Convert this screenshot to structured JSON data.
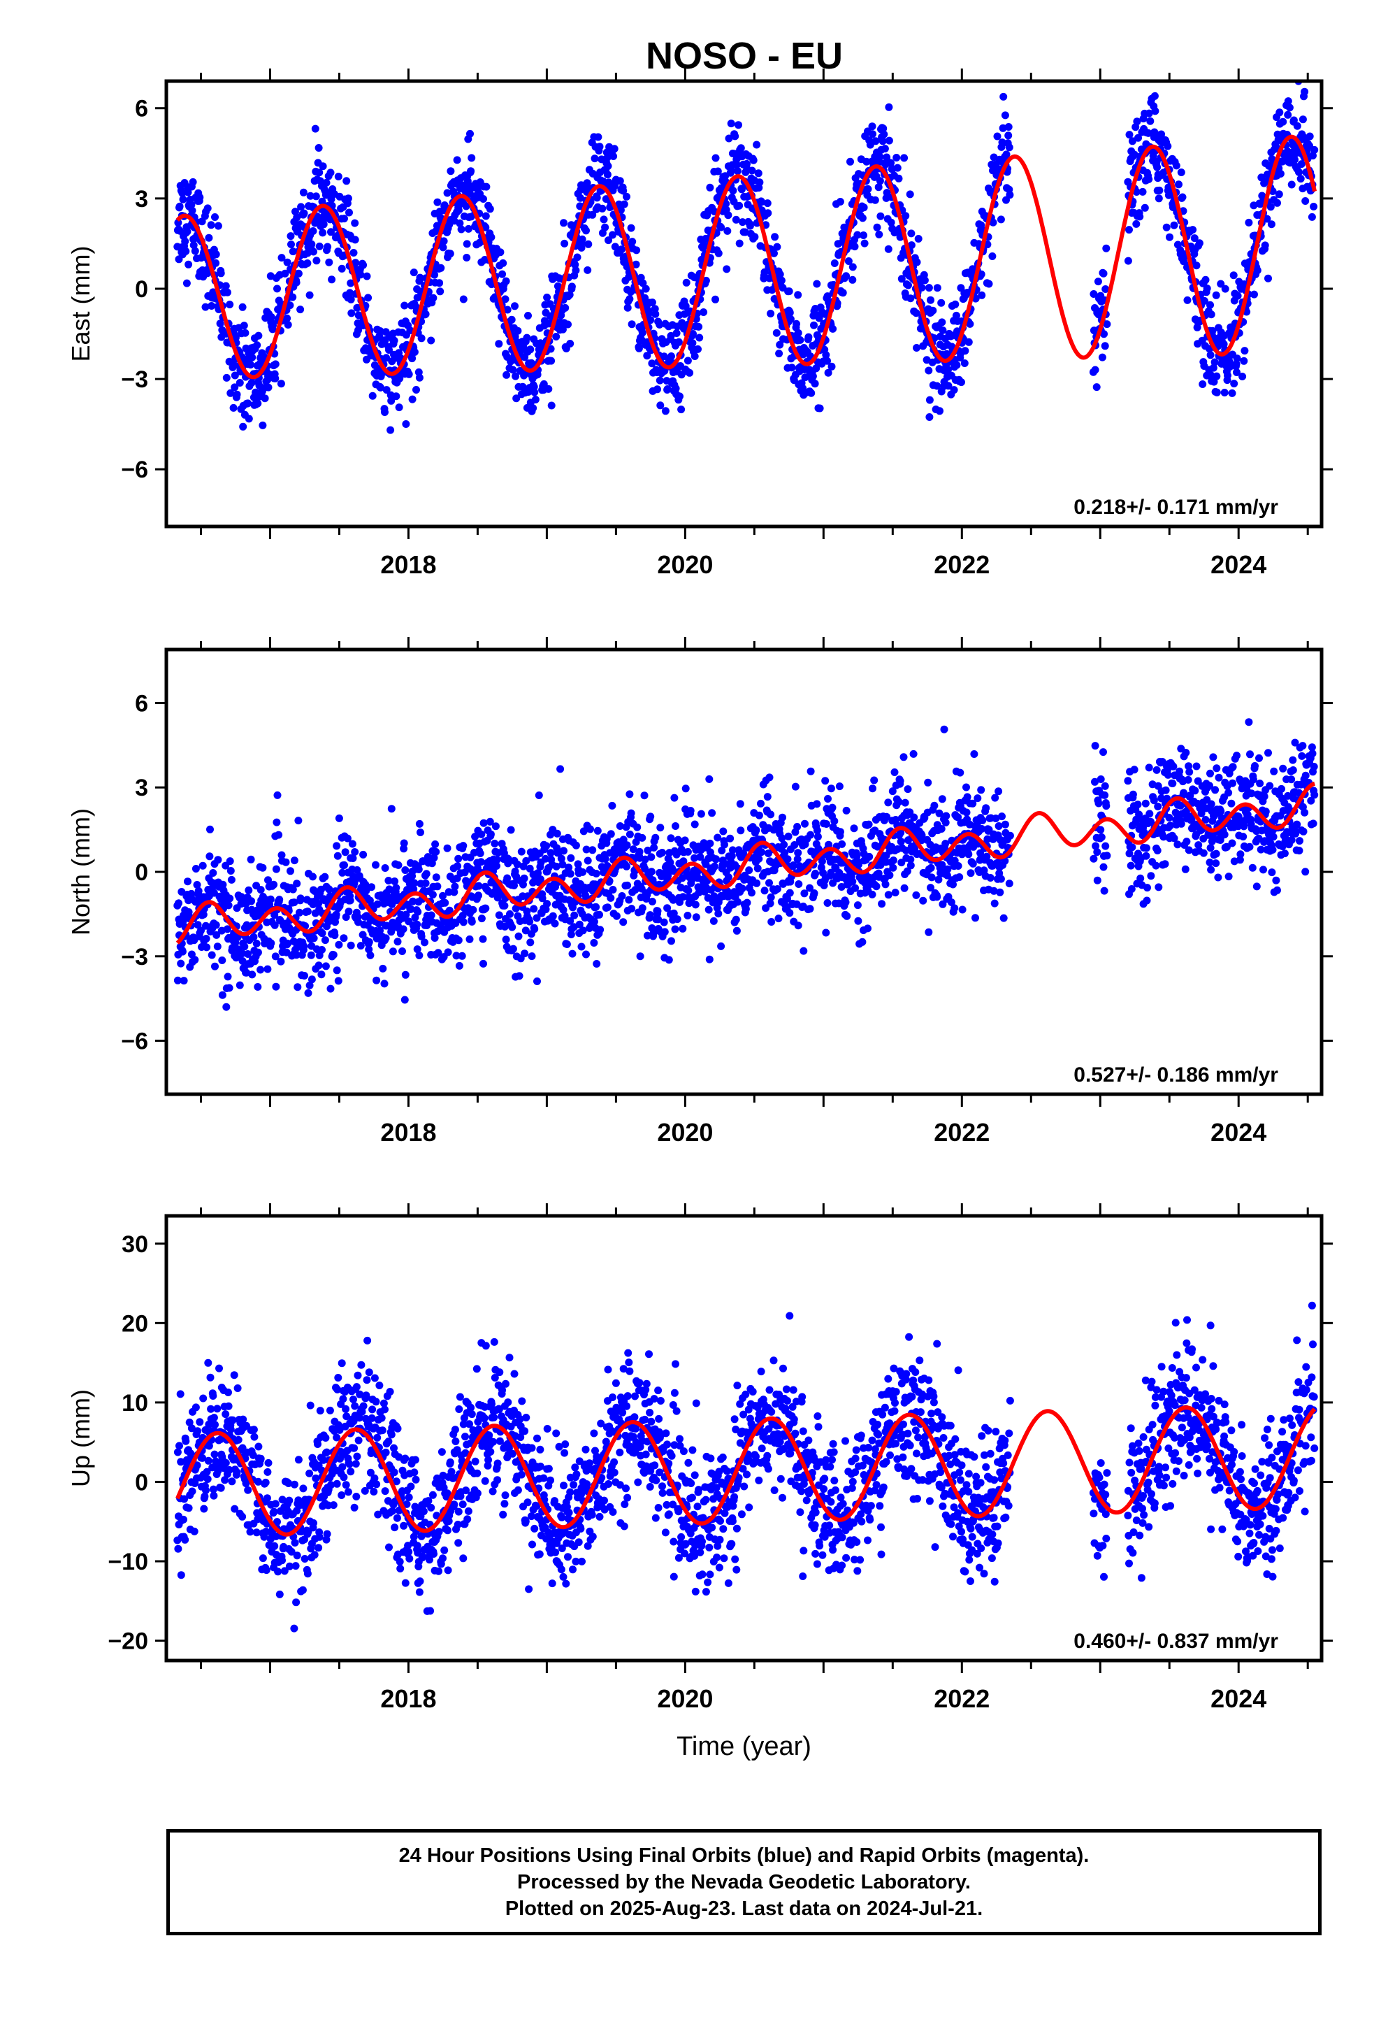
{
  "title": "NOSO - EU",
  "colors": {
    "observed": "#0000ff",
    "model": "#ff0000",
    "axis": "#000000"
  },
  "chart_data": [
    {
      "type": "scatter",
      "name": "east-panel",
      "ylabel": "East (mm)",
      "xlabel": "",
      "xlim": [
        2016.25,
        2024.6
      ],
      "ylim": [
        -7.9,
        6.9
      ],
      "xticks": [
        2018,
        2020,
        2022,
        2024
      ],
      "yticks": [
        -6,
        -3,
        0,
        3,
        6
      ],
      "yticklabels": [
        "−6",
        "−3",
        "0",
        "3",
        "6"
      ],
      "rate_label": "0.218+/- 0.171 mm/yr",
      "model": {
        "offset": -0.3,
        "rate": 0.218,
        "amplitude": 2.7,
        "amp_growth": 0.11,
        "annual_phase_peak": 0.38,
        "semiannual_amplitude": 0.0,
        "semiannual_peak": 0.0
      },
      "noise_sd": 0.85,
      "data_segments": [
        [
          2016.33,
          2022.35
        ],
        [
          2022.95,
          2023.05
        ],
        [
          2023.2,
          2024.55
        ]
      ]
    },
    {
      "type": "scatter",
      "name": "north-panel",
      "ylabel": "North (mm)",
      "xlabel": "",
      "xlim": [
        2016.25,
        2024.6
      ],
      "ylim": [
        -7.9,
        7.9
      ],
      "xticks": [
        2018,
        2020,
        2022,
        2024
      ],
      "yticks": [
        -6,
        -3,
        0,
        3,
        6
      ],
      "yticklabels": [
        "−6",
        "−3",
        "0",
        "3",
        "6"
      ],
      "rate_label": "0.527+/- 0.186 mm/yr",
      "model": {
        "offset": -2.0,
        "rate": 0.527,
        "amplitude": 0.25,
        "amp_growth": 0.0,
        "annual_phase_peak": 0.6,
        "semiannual_amplitude": 0.55,
        "semiannual_peak": 0.05
      },
      "noise_sd": 1.05,
      "data_segments": [
        [
          2016.33,
          2022.35
        ],
        [
          2022.95,
          2023.05
        ],
        [
          2023.2,
          2024.55
        ]
      ]
    },
    {
      "type": "scatter",
      "name": "up-panel",
      "ylabel": "Up (mm)",
      "xlabel": "Time (year)",
      "xlim": [
        2016.25,
        2024.6
      ],
      "ylim": [
        -22.5,
        33.5
      ],
      "xticks": [
        2018,
        2020,
        2022,
        2024
      ],
      "yticks": [
        -20,
        -10,
        0,
        10,
        20,
        30
      ],
      "yticklabels": [
        "−20",
        "−10",
        "0",
        "10",
        "20",
        "30"
      ],
      "rate_label": "0.460+/- 0.837 mm/yr",
      "model": {
        "offset": -0.5,
        "rate": 0.46,
        "amplitude": 6.5,
        "amp_growth": 0.0,
        "annual_phase_peak": 0.62,
        "semiannual_amplitude": 0.0,
        "semiannual_peak": 0.0
      },
      "noise_sd": 4.2,
      "data_segments": [
        [
          2016.33,
          2022.35
        ],
        [
          2022.95,
          2023.05
        ],
        [
          2023.2,
          2024.55
        ]
      ]
    }
  ],
  "caption": {
    "line1": "24 Hour Positions Using Final Orbits (blue) and Rapid Orbits (magenta).",
    "line2": "Processed by the Nevada Geodetic Laboratory.",
    "line3": "Plotted on 2025-Aug-23. Last data on 2024-Jul-21."
  }
}
